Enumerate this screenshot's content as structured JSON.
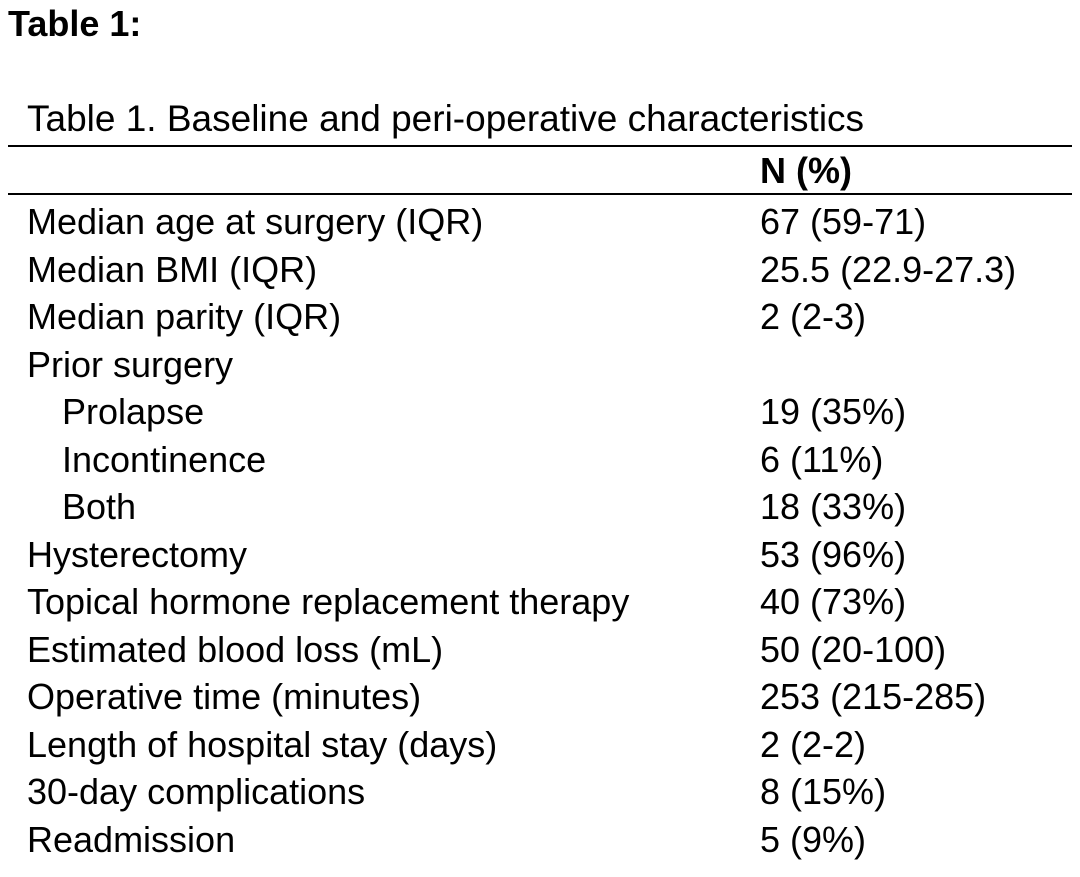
{
  "heading": "Table 1:",
  "table": {
    "caption": "Table 1. Baseline and peri-operative characteristics",
    "column_header": "N (%)",
    "rows": [
      {
        "label": "Median age at surgery (IQR)",
        "value": "67 (59-71)"
      },
      {
        "label": "Median BMI (IQR)",
        "value": "25.5 (22.9-27.3)"
      },
      {
        "label": "Median parity (IQR)",
        "value": "2 (2-3)"
      },
      {
        "label": "Prior surgery",
        "value": ""
      },
      {
        "label": "Prolapse",
        "value": "19 (35%)"
      },
      {
        "label": "Incontinence",
        "value": "6 (11%)"
      },
      {
        "label": "Both",
        "value": "18 (33%)"
      },
      {
        "label": "Hysterectomy",
        "value": "53 (96%)"
      },
      {
        "label": "Topical hormone replacement therapy",
        "value": "40 (73%)"
      },
      {
        "label": "Estimated blood loss (mL)",
        "value": "50 (20-100)"
      },
      {
        "label": "Operative time (minutes)",
        "value": "253 (215-285)"
      },
      {
        "label": "Length of hospital stay (days)",
        "value": "2 (2-2)"
      },
      {
        "label": "30-day complications",
        "value": "8 (15%)"
      },
      {
        "label": "Readmission",
        "value": "5 (9%)"
      }
    ]
  }
}
